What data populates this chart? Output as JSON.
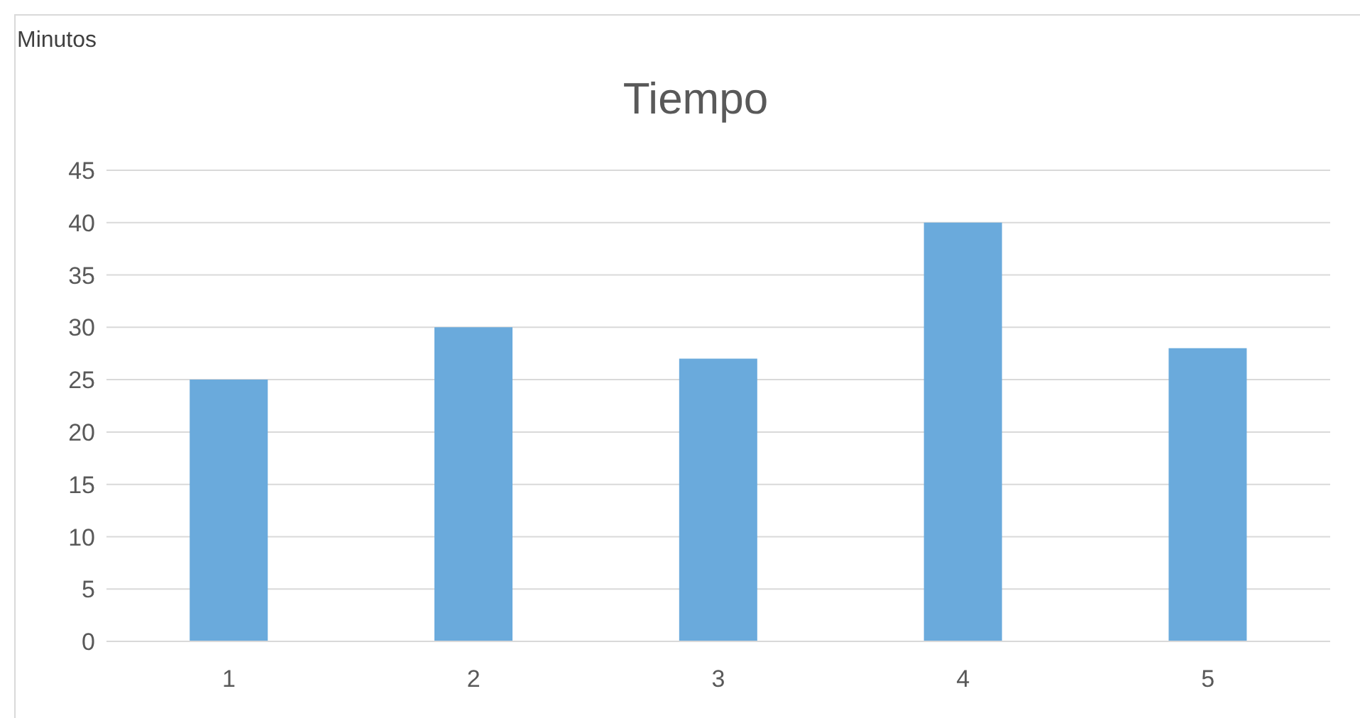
{
  "chart_data": {
    "type": "bar",
    "title": "Tiempo",
    "ylabel": "Minutos",
    "categories": [
      "1",
      "2",
      "3",
      "4",
      "5"
    ],
    "values": [
      25,
      30,
      27,
      40,
      28
    ],
    "color": "#6aaadc",
    "ylim": [
      0,
      45
    ],
    "yticks": [
      0,
      5,
      10,
      15,
      20,
      25,
      30,
      35,
      40,
      45
    ],
    "grid": "y",
    "legend": false
  }
}
